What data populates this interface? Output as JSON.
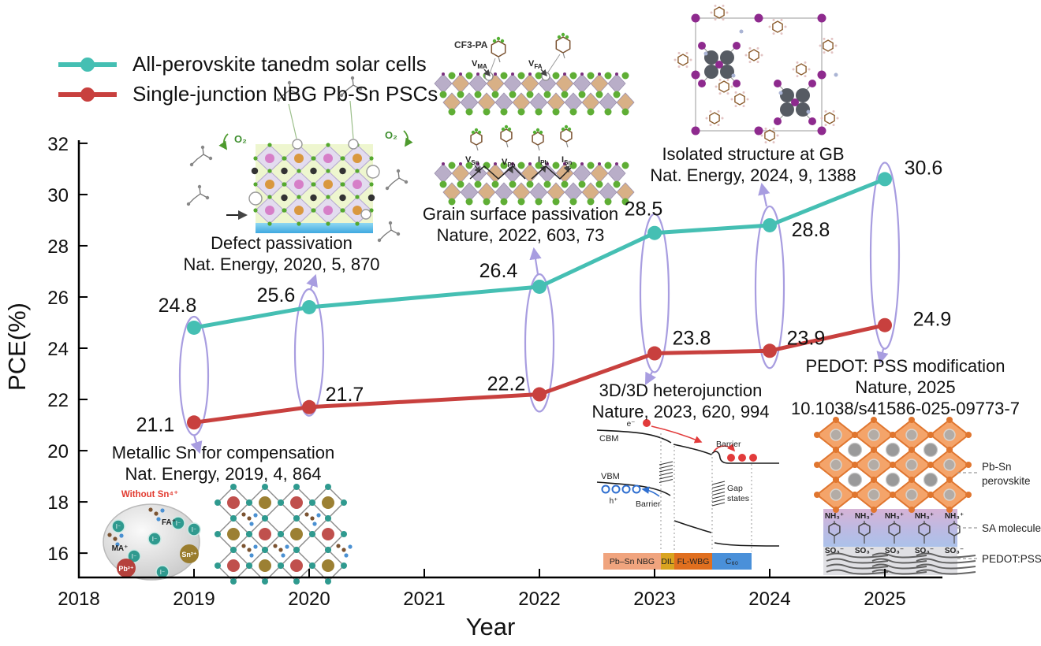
{
  "legend": {
    "items": [
      {
        "label": "All-perovskite tanedm solar cells",
        "color": "#45bfb3"
      },
      {
        "label": "Single-junction NBG Pb-Sn PSCs",
        "color": "#c8403e"
      }
    ]
  },
  "chart_data": {
    "type": "line",
    "xlabel": "Year",
    "ylabel": "PCE(%)",
    "xlim": [
      2018,
      2025.5
    ],
    "ylim": [
      15.05,
      32.12
    ],
    "xticks": [
      2018,
      2019,
      2020,
      2021,
      2022,
      2023,
      2024,
      2025
    ],
    "yticks": [
      16,
      18,
      20,
      22,
      24,
      26,
      28,
      30,
      32
    ],
    "grid": false,
    "legend_position": "top-left",
    "series": [
      {
        "name": "All-perovskite tanedm solar cells",
        "color": "#45bfb3",
        "x": [
          2019,
          2020,
          2022,
          2023,
          2024,
          2025
        ],
        "y": [
          24.8,
          25.6,
          26.4,
          28.5,
          28.8,
          30.6
        ],
        "label_offsets": [
          [
            -21,
            -29
          ],
          [
            -42,
            -16
          ],
          [
            -52,
            -21
          ],
          [
            -14,
            -31
          ],
          [
            52,
            5
          ],
          [
            49,
            -15
          ]
        ]
      },
      {
        "name": "Single-junction NBG Pb-Sn PSCs",
        "color": "#c8403e",
        "x": [
          2019,
          2020,
          2022,
          2023,
          2024,
          2025
        ],
        "y": [
          21.1,
          21.7,
          22.2,
          23.8,
          23.9,
          24.9
        ],
        "label_offsets": [
          [
            -49,
            2
          ],
          [
            45,
            -17
          ],
          [
            -42,
            -14
          ],
          [
            47,
            -20
          ],
          [
            46,
            -17
          ],
          [
            60,
            -8
          ]
        ]
      }
    ],
    "highlight_color": "#a89de0",
    "highlights": [
      {
        "x": 2019,
        "pad": [
          14,
          16
        ],
        "arrow": [
          [
            246,
            552
          ],
          [
            253,
            574
          ]
        ]
      },
      {
        "x": 2020,
        "pad": [
          23,
          11
        ],
        "arrow": [
          [
            394,
            367
          ],
          [
            400,
            350
          ]
        ]
      },
      {
        "x": 2022,
        "pad": [
          16,
          22
        ],
        "arrow": [
          [
            682,
            348
          ],
          [
            677,
            316
          ]
        ]
      },
      {
        "x": 2023,
        "pad": [
          24,
          24
        ],
        "arrow": [
          [
            827,
            472
          ],
          [
            819,
            487
          ]
        ]
      },
      {
        "x": 2024,
        "pad": [
          24,
          22
        ],
        "arrow": [
          [
            972,
            262
          ],
          [
            966,
            234
          ]
        ]
      },
      {
        "x": 2025,
        "pad": [
          21,
          30
        ],
        "arrow": [
          [
            1120,
            443
          ],
          [
            1116,
            460
          ]
        ]
      }
    ]
  },
  "annotations": [
    {
      "id": "defect",
      "lines": [
        "Defect passivation",
        "Nat. Energy, 2020, 5, 870"
      ]
    },
    {
      "id": "grain",
      "lines": [
        "Grain surface passivation",
        "Nature, 2022, 603, 73"
      ]
    },
    {
      "id": "isolated",
      "lines": [
        "Isolated structure at GB",
        "Nat. Energy, 2024, 9, 1388"
      ]
    },
    {
      "id": "metallic",
      "lines": [
        "Metallic Sn for compensation",
        "Nat. Energy, 2019, 4, 864"
      ]
    },
    {
      "id": "hetero",
      "lines": [
        "3D/3D heterojunction",
        "Nature, 2023, 620, 994"
      ]
    },
    {
      "id": "pedot",
      "lines": [
        "PEDOT: PSS modification",
        "Nature, 2025",
        "10.1038/s41586-025-09773-7"
      ]
    }
  ],
  "insets": {
    "defect": {
      "o2": "O₂"
    },
    "cf3pa": {
      "molecule": "CF3-PA",
      "sites": [
        {
          "base": "V",
          "sub": "MA"
        },
        {
          "base": "V",
          "sub": "FA"
        },
        {
          "base": "V",
          "sub": "Sn"
        },
        {
          "base": "V",
          "sub": "Pb"
        },
        {
          "base": "I",
          "sub": "Pb"
        },
        {
          "base": "I",
          "sub": "Sn"
        }
      ]
    },
    "metallic": {
      "caption": "Without Sn⁴⁺",
      "fa": "FA⁺",
      "ma": "MA⁺",
      "pb": "Pb²⁺",
      "sn": "Sn²⁺",
      "iodide": "I⁻"
    },
    "band": {
      "electron": "e⁻",
      "cbm": "CBM",
      "barrier_top": "Barrier",
      "vbm": "VBM",
      "hole": "h⁺",
      "barrier_bottom": "Barrier",
      "gap_lines": [
        "Gap",
        "states"
      ],
      "layers": [
        {
          "label": "Pb–Sn NBG",
          "color": "#f0a47e"
        },
        {
          "label": "DIL",
          "color": "#d9a420"
        },
        {
          "label": "FL-WBG",
          "color": "#e06f1f"
        },
        {
          "label": "C₆₀",
          "color": "#4a90d9"
        }
      ]
    },
    "pedot": {
      "nh3": "NH₃⁺",
      "so3": "SO₃⁻",
      "perovskite_lines": [
        "Pb-Sn",
        "perovskite"
      ],
      "sa": "SA molecule",
      "pedot": "PEDOT:PSS"
    }
  }
}
